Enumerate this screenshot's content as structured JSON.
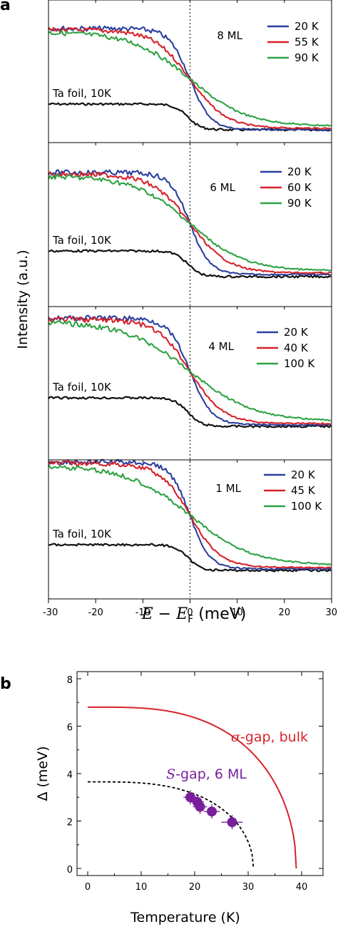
{
  "chart_data": [
    {
      "panel": "a",
      "type": "line",
      "xlabel": "E − E_F (meV)",
      "xlabel_parts": {
        "e": "E",
        "minus": " − ",
        "ef": "E",
        "ef_sub": "F",
        "unit": " (meV)"
      },
      "ylabel": "Intensity (a.u.)",
      "xlim": [
        -30,
        30
      ],
      "x_ticks": [
        "-30",
        "-20",
        "-10",
        "0",
        "10",
        "20",
        "30"
      ],
      "vertical_dotted_line_x": 0,
      "reference_label": "Ta foil, 10K",
      "series_colors": {
        "low": "#2b3f9e",
        "mid": "#d6232a",
        "high": "#2ea343",
        "ref": "#111111"
      },
      "subplots": [
        {
          "label": "8 ML",
          "series": [
            {
              "name": "20 K",
              "width": 2.2
            },
            {
              "name": "55 K",
              "width": 3.8
            },
            {
              "name": "90 K",
              "width": 6.0
            }
          ]
        },
        {
          "label": "6 ML",
          "series": [
            {
              "name": "20 K",
              "width": 2.1
            },
            {
              "name": "60 K",
              "width": 4.0
            },
            {
              "name": "90 K",
              "width": 5.8
            }
          ]
        },
        {
          "label": "4 ML",
          "series": [
            {
              "name": "20 K",
              "width": 2.3
            },
            {
              "name": "40 K",
              "width": 3.5
            },
            {
              "name": "100 K",
              "width": 6.8
            }
          ]
        },
        {
          "label": "1 ML",
          "series": [
            {
              "name": "20 K",
              "width": 2.1
            },
            {
              "name": "45 K",
              "width": 3.2
            },
            {
              "name": "100 K",
              "width": 6.6
            }
          ]
        }
      ]
    },
    {
      "panel": "b",
      "type": "scatter",
      "xlabel": "Temperature (K)",
      "ylabel": "Δ (meV)",
      "xlim": [
        -2,
        44
      ],
      "ylim": [
        -0.3,
        8.3
      ],
      "x_ticks": [
        0,
        10,
        20,
        30,
        40
      ],
      "y_ticks": [
        0,
        2,
        4,
        6,
        8
      ],
      "curve_label": {
        "symbol": "σ",
        "text": "-gap, bulk",
        "color": "#d6232a"
      },
      "points_label": {
        "symbol": "S",
        "text": "-gap, 6 ML",
        "color": "#7a1f9b"
      },
      "bulk_gap_curve": {
        "delta0": 6.8,
        "tc": 39
      },
      "fit_curve_6ml": {
        "delta0": 3.65,
        "tc": 31
      },
      "points_6ml": [
        {
          "x": 19.2,
          "y": 3.0,
          "xerr": 1.3,
          "yerr": 0.3
        },
        {
          "x": 20.5,
          "y": 2.8,
          "xerr": 1.2,
          "yerr": 0.3
        },
        {
          "x": 21.0,
          "y": 2.6,
          "xerr": 1.3,
          "yerr": 0.3
        },
        {
          "x": 23.2,
          "y": 2.4,
          "xerr": 1.5,
          "yerr": 0.3
        },
        {
          "x": 27.0,
          "y": 1.95,
          "xerr": 2.0,
          "yerr": 0.3
        }
      ]
    }
  ],
  "panel_labels": {
    "a": "a",
    "b": "b"
  }
}
